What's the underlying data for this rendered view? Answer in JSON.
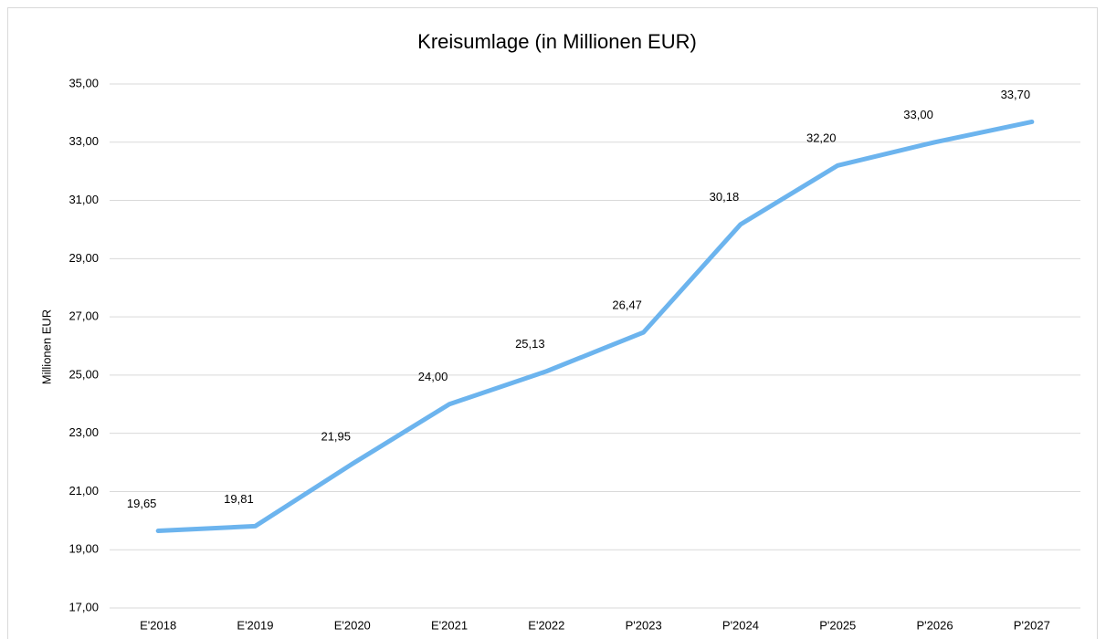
{
  "chart_data": {
    "type": "line",
    "title": "Kreisumlage (in Millionen EUR)",
    "y_label": "Millionen EUR",
    "categories": [
      "E'2018",
      "E'2019",
      "E'2020",
      "E'2021",
      "E'2022",
      "P'2023",
      "P'2024",
      "P'2025",
      "P'2026",
      "P'2027"
    ],
    "values": [
      19.65,
      19.81,
      21.95,
      24.0,
      25.13,
      26.47,
      30.18,
      32.2,
      33.0,
      33.7
    ],
    "value_labels": [
      "19,65",
      "19,81",
      "21,95",
      "24,00",
      "25,13",
      "26,47",
      "30,18",
      "32,20",
      "33,00",
      "33,70"
    ],
    "color": "#6cb4ee",
    "ylim": [
      17,
      35
    ],
    "yticks": [
      {
        "value": 17,
        "label": "17,00"
      },
      {
        "value": 19,
        "label": "19,00"
      },
      {
        "value": 21,
        "label": "21,00"
      },
      {
        "value": 23,
        "label": "23,00"
      },
      {
        "value": 25,
        "label": "25,00"
      },
      {
        "value": 27,
        "label": "27,00"
      },
      {
        "value": 29,
        "label": "29,00"
      },
      {
        "value": 31,
        "label": "31,00"
      },
      {
        "value": 33,
        "label": "33,00"
      },
      {
        "value": 35,
        "label": "35,00"
      }
    ],
    "grid": true
  }
}
